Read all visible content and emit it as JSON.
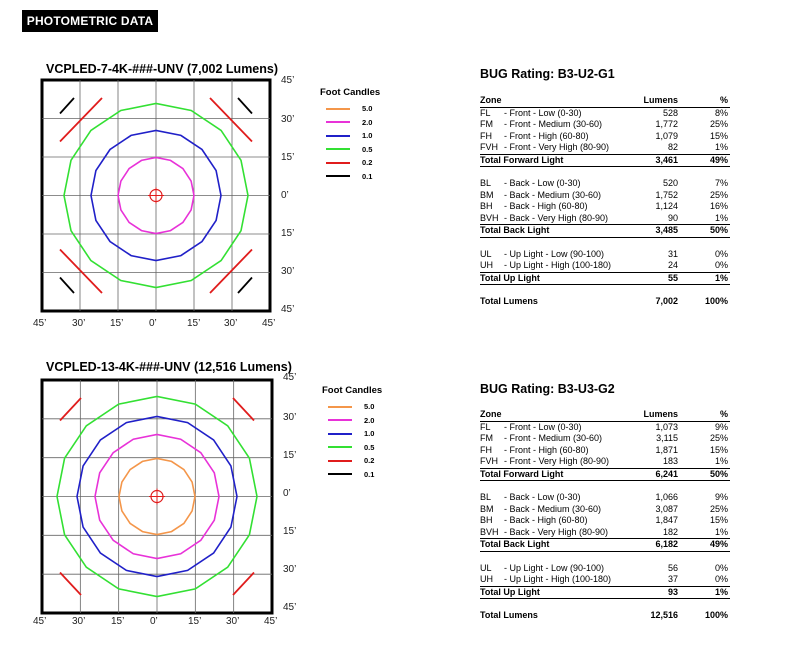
{
  "header": {
    "label": "PHOTOMETRIC DATA"
  },
  "plots": [
    {
      "title": "VCPLED-7-4K-###-UNV (7,002 Lumens)",
      "angles_right": [
        "45’",
        "30’",
        "15’",
        "0’",
        "15’",
        "30’",
        "45’"
      ],
      "angles_bottom": [
        "45’",
        "30’",
        "15’",
        "0’",
        "15’",
        "30’",
        "45’"
      ],
      "legend": {
        "title": "Foot Candles",
        "items": [
          {
            "level": "5.0",
            "color": "#f4964a"
          },
          {
            "level": "2.0",
            "color": "#e832d8"
          },
          {
            "level": "1.0",
            "color": "#2020c8"
          },
          {
            "level": "0.5",
            "color": "#33e033"
          },
          {
            "level": "0.2",
            "color": "#e01c1c"
          },
          {
            "level": "0.1",
            "color": "#000000"
          }
        ]
      },
      "bug": {
        "title": "BUG Rating:  B3-U2-G1",
        "columns": {
          "zone": "Zone",
          "lumens": "Lumens",
          "pct": "%"
        },
        "groups": [
          {
            "rows": [
              {
                "code": "FL",
                "desc": "- Front - Low (0-30)",
                "lumens": "528",
                "pct": "8%"
              },
              {
                "code": "FM",
                "desc": "- Front - Medium (30-60)",
                "lumens": "1,772",
                "pct": "25%"
              },
              {
                "code": "FH",
                "desc": "- Front - High (60-80)",
                "lumens": "1,079",
                "pct": "15%"
              },
              {
                "code": "FVH",
                "desc": "- Front - Very High (80-90)",
                "lumens": "82",
                "pct": "1%"
              }
            ],
            "total": {
              "label": "Total Forward Light",
              "lumens": "3,461",
              "pct": "49%"
            }
          },
          {
            "rows": [
              {
                "code": "BL",
                "desc": "- Back - Low (0-30)",
                "lumens": "520",
                "pct": "7%"
              },
              {
                "code": "BM",
                "desc": "- Back - Medium (30-60)",
                "lumens": "1,752",
                "pct": "25%"
              },
              {
                "code": "BH",
                "desc": "- Back - High (60-80)",
                "lumens": "1,124",
                "pct": "16%"
              },
              {
                "code": "BVH",
                "desc": "- Back - Very High (80-90)",
                "lumens": "90",
                "pct": "1%"
              }
            ],
            "total": {
              "label": "Total Back Light",
              "lumens": "3,485",
              "pct": "50%"
            }
          },
          {
            "rows": [
              {
                "code": "UL",
                "desc": "- Up Light - Low (90-100)",
                "lumens": "31",
                "pct": "0%"
              },
              {
                "code": "UH",
                "desc": "- Up Light - High (100-180)",
                "lumens": "24",
                "pct": "0%"
              }
            ],
            "total": {
              "label": "Total Up Light",
              "lumens": "55",
              "pct": "1%"
            }
          }
        ],
        "grand_total": {
          "label": "Total Lumens",
          "lumens": "7,002",
          "pct": "100%"
        }
      }
    },
    {
      "title": "VCPLED-13-4K-###-UNV (12,516 Lumens)",
      "angles_right": [
        "45’",
        "30’",
        "15’",
        "0’",
        "15’",
        "30’",
        "45’"
      ],
      "angles_bottom": [
        "45’",
        "30’",
        "15’",
        "0’",
        "15’",
        "30’",
        "45’"
      ],
      "legend": {
        "title": "Foot Candles",
        "items": [
          {
            "level": "5.0",
            "color": "#f4964a"
          },
          {
            "level": "2.0",
            "color": "#e832d8"
          },
          {
            "level": "1.0",
            "color": "#2020c8"
          },
          {
            "level": "0.5",
            "color": "#33e033"
          },
          {
            "level": "0.2",
            "color": "#e01c1c"
          },
          {
            "level": "0.1",
            "color": "#000000"
          }
        ]
      },
      "bug": {
        "title": "BUG Rating:  B3-U3-G2",
        "columns": {
          "zone": "Zone",
          "lumens": "Lumens",
          "pct": "%"
        },
        "groups": [
          {
            "rows": [
              {
                "code": "FL",
                "desc": "- Front - Low (0-30)",
                "lumens": "1,073",
                "pct": "9%"
              },
              {
                "code": "FM",
                "desc": "- Front - Medium (30-60)",
                "lumens": "3,115",
                "pct": "25%"
              },
              {
                "code": "FH",
                "desc": "- Front - High (60-80)",
                "lumens": "1,871",
                "pct": "15%"
              },
              {
                "code": "FVH",
                "desc": "- Front - Very High (80-90)",
                "lumens": "183",
                "pct": "1%"
              }
            ],
            "total": {
              "label": "Total Forward Light",
              "lumens": "6,241",
              "pct": "50%"
            }
          },
          {
            "rows": [
              {
                "code": "BL",
                "desc": "- Back - Low (0-30)",
                "lumens": "1,066",
                "pct": "9%"
              },
              {
                "code": "BM",
                "desc": "- Back - Medium (30-60)",
                "lumens": "3,087",
                "pct": "25%"
              },
              {
                "code": "BH",
                "desc": "- Back - High (60-80)",
                "lumens": "1,847",
                "pct": "15%"
              },
              {
                "code": "BVH",
                "desc": "- Back - Very High (80-90)",
                "lumens": "182",
                "pct": "1%"
              }
            ],
            "total": {
              "label": "Total Back Light",
              "lumens": "6,182",
              "pct": "49%"
            }
          },
          {
            "rows": [
              {
                "code": "UL",
                "desc": "- Up Light - Low (90-100)",
                "lumens": "56",
                "pct": "0%"
              },
              {
                "code": "UH",
                "desc": "- Up Light - High (100-180)",
                "lumens": "37",
                "pct": "0%"
              }
            ],
            "total": {
              "label": "Total Up Light",
              "lumens": "93",
              "pct": "1%"
            }
          }
        ],
        "grand_total": {
          "label": "Total Lumens",
          "lumens": "12,516",
          "pct": "100%"
        }
      }
    }
  ]
}
